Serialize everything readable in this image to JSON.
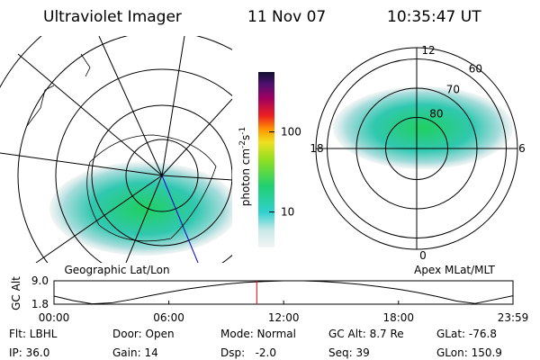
{
  "header": {
    "title": "Ultraviolet Imager",
    "date": "11 Nov 07",
    "time": "10:35:47 UT"
  },
  "colorbar": {
    "label": [
      "photon cm",
      "-2",
      "s",
      "-1"
    ],
    "lim": [
      3.6,
      560
    ],
    "ticks": [
      10,
      100
    ],
    "log": true
  },
  "geo_map": {
    "title": "Geographic Lat/Lon"
  },
  "polar_map": {
    "title": "Apex MLat/MLT",
    "mlt_labels": [
      "12",
      "18",
      "6",
      "0"
    ],
    "lat_rings": [
      80,
      70,
      60
    ]
  },
  "chart_data": {
    "type": "line",
    "y_label": "GC Alt",
    "x": [
      0,
      1,
      2,
      3,
      4,
      5,
      6,
      7,
      8,
      9,
      10,
      11,
      12,
      13,
      14,
      15,
      16,
      17,
      18,
      19,
      20,
      21,
      22,
      23,
      23.983
    ],
    "values": [
      4.3,
      2.9,
      1.9,
      2.2,
      3.2,
      4.4,
      5.5,
      6.5,
      7.3,
      8.0,
      8.5,
      8.8,
      9.0,
      9.0,
      8.8,
      8.4,
      7.9,
      7.2,
      6.4,
      5.4,
      4.2,
      2.8,
      2.0,
      3.2,
      4.4
    ],
    "color": "#000000",
    "xlim": [
      0,
      23.983
    ],
    "xticks": [
      {
        "value": 0,
        "label": "00:00"
      },
      {
        "value": 6,
        "label": "06:00"
      },
      {
        "value": 12,
        "label": "12:00"
      },
      {
        "value": 18,
        "label": "18:00"
      },
      {
        "value": 23.983,
        "label": "23:59"
      }
    ],
    "ylim": [
      1.8,
      9.0
    ],
    "yticks": [
      {
        "value": 9.0,
        "label": "9.0"
      },
      1.8
    ],
    "marker_x": 10.596,
    "marker_color": "#ff0000"
  },
  "info": [
    [
      "Flt: LBHL",
      "IP: 36.0"
    ],
    [
      "Door: Open",
      "Gain: 14"
    ],
    [
      "Mode: Normal",
      "Dsp:   -2.0"
    ],
    [
      "GC Alt: 8.7 Re",
      "Seq: 39"
    ],
    [
      "GLat: -76.8",
      "GLon: 150.9"
    ]
  ]
}
